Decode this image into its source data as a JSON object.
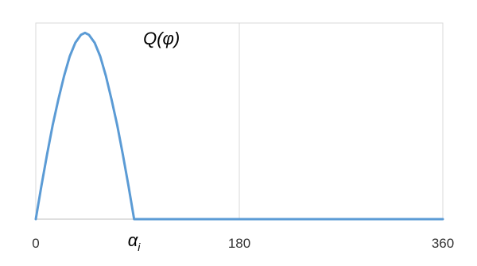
{
  "chart_data": {
    "type": "line",
    "title": "",
    "xlabel": "",
    "ylabel": "",
    "xlim": [
      0,
      360
    ],
    "ylim": [
      0,
      1
    ],
    "grid": {
      "x": false,
      "y": false
    },
    "reference_lines": [
      {
        "x": 180
      }
    ],
    "x_tick_labels": [
      {
        "x": 0,
        "text": "0"
      },
      {
        "x": 180,
        "text": "180"
      },
      {
        "x": 360,
        "text": "360"
      }
    ],
    "annotations": [
      {
        "text": "Q(φ)",
        "at_x": 95,
        "at_y": 0.94
      },
      {
        "text": "α",
        "subscript": "i",
        "at_x": 87,
        "at_y": 0
      }
    ],
    "series": [
      {
        "color": "#5b9bd5",
        "x": [
          0,
          87,
          360
        ],
        "shape": "half-sine from 0 to 87, then zero",
        "peak": 0.95,
        "points": [
          [
            0,
            0
          ],
          [
            5,
            0.17
          ],
          [
            10,
            0.33
          ],
          [
            15,
            0.48
          ],
          [
            20,
            0.61
          ],
          [
            25,
            0.73
          ],
          [
            30,
            0.83
          ],
          [
            35,
            0.9
          ],
          [
            40,
            0.94
          ],
          [
            43.5,
            0.95
          ],
          [
            47,
            0.94
          ],
          [
            52,
            0.9
          ],
          [
            57,
            0.83
          ],
          [
            62,
            0.73
          ],
          [
            67,
            0.61
          ],
          [
            72,
            0.48
          ],
          [
            77,
            0.33
          ],
          [
            82,
            0.17
          ],
          [
            87,
            0
          ],
          [
            180,
            0
          ],
          [
            360,
            0
          ]
        ]
      }
    ],
    "colors": {
      "line": "#5b9bd5",
      "frame": "#d9d9d9",
      "refline": "#d9d9d9"
    }
  }
}
